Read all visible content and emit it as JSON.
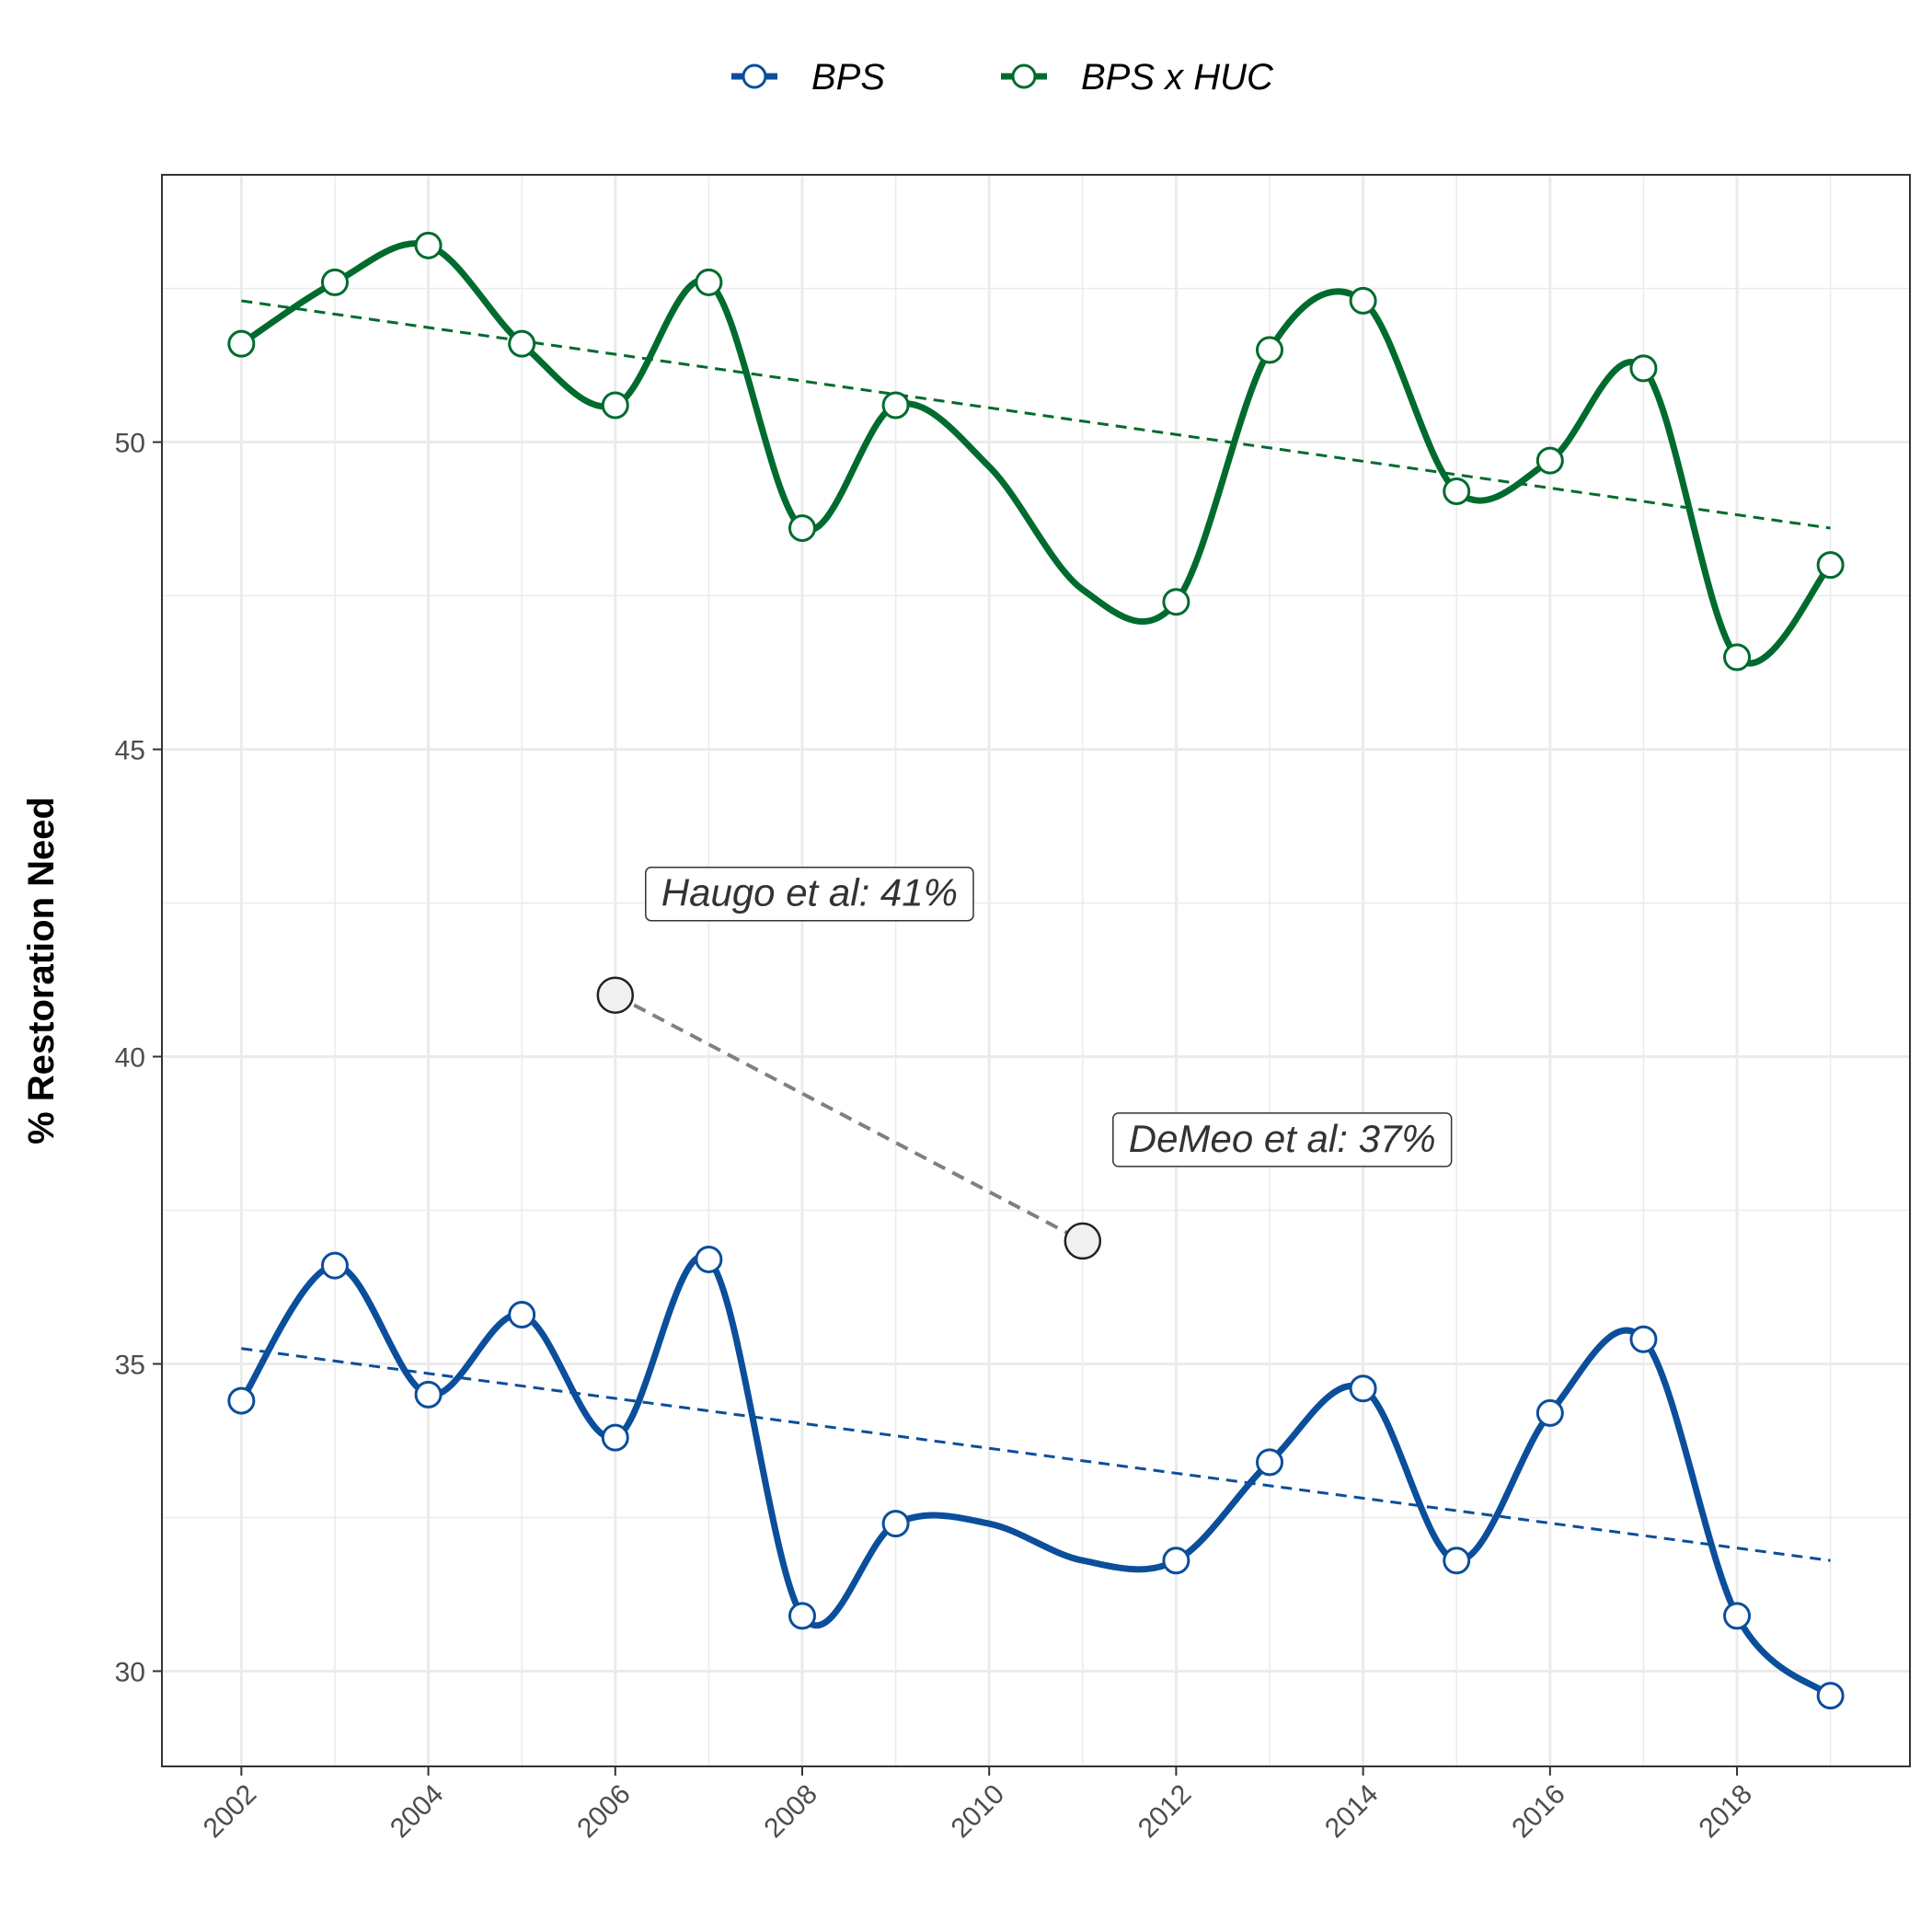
{
  "chart_data": {
    "type": "line",
    "title": "",
    "xlabel": "",
    "ylabel": "% Restoration Need",
    "x": [
      2002,
      2003,
      2004,
      2005,
      2006,
      2007,
      2008,
      2009,
      2010,
      2011,
      2012,
      2013,
      2014,
      2015,
      2016,
      2017,
      2018,
      2019
    ],
    "xticks": [
      2002,
      2004,
      2006,
      2008,
      2010,
      2012,
      2014,
      2016,
      2018
    ],
    "yticks": [
      30,
      35,
      40,
      45,
      50
    ],
    "xlim": [
      2001.15,
      2019.85
    ],
    "ylim": [
      28.45,
      54.35
    ],
    "grid": true,
    "legend_position": "top",
    "series": [
      {
        "name": "BPS",
        "color": "#0b4e9b",
        "values": [
          34.4,
          36.6,
          34.5,
          35.8,
          33.8,
          36.7,
          30.9,
          32.4,
          null,
          null,
          31.8,
          33.4,
          34.6,
          31.8,
          34.2,
          35.4,
          30.9,
          29.6
        ],
        "smooth_points": [
          [
            2010,
            32.4
          ],
          [
            2011,
            31.8
          ]
        ],
        "trend": [
          35.25,
          31.8
        ]
      },
      {
        "name": "BPS x HUC",
        "color": "#006b2e",
        "values": [
          51.6,
          52.6,
          53.2,
          51.6,
          50.6,
          52.6,
          48.6,
          50.6,
          null,
          null,
          47.4,
          51.5,
          52.3,
          49.2,
          49.7,
          51.2,
          46.5,
          48.0
        ],
        "smooth_points": [
          [
            2010,
            49.6
          ],
          [
            2011,
            47.6
          ]
        ],
        "trend": [
          52.3,
          48.6
        ]
      }
    ],
    "reference": {
      "points": [
        {
          "x": 2006,
          "y": 41,
          "label": "Haugo et al: 41%"
        },
        {
          "x": 2011,
          "y": 37,
          "label": "DeMeo et al: 37%"
        }
      ],
      "line_color": "#808080",
      "point_fill": "#f0f0f0"
    }
  }
}
